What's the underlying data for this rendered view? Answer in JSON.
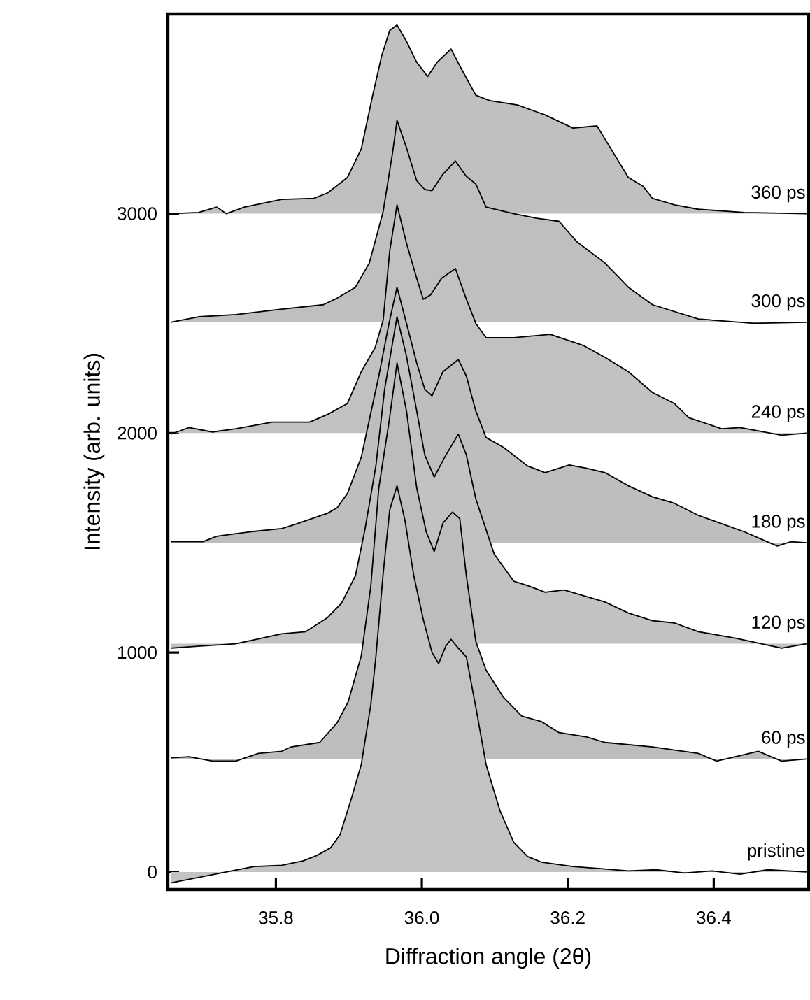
{
  "chart_data": {
    "type": "area",
    "xlabel": "Diffraction angle (2θ)",
    "ylabel": "Intensity (arb. units)",
    "xlim": [
      35.652,
      36.53
    ],
    "ylim": [
      -80,
      3910
    ],
    "xticks": [
      {
        "value": 35.8,
        "label": "35.8"
      },
      {
        "value": 36.0,
        "label": "36.0"
      },
      {
        "value": 36.2,
        "label": "36.2"
      },
      {
        "value": 36.4,
        "label": "36.4"
      }
    ],
    "yticks": [
      0,
      1000,
      2000,
      3000
    ],
    "series": [
      {
        "name": "360 ps",
        "color": "#c0c0c0",
        "x": [
          35.656,
          35.694,
          35.719,
          35.732,
          35.757,
          35.808,
          35.852,
          35.871,
          35.898,
          35.917,
          35.932,
          35.945,
          35.956,
          35.966,
          35.979,
          35.993,
          36.008,
          36.021,
          36.04,
          36.055,
          36.074,
          36.093,
          36.131,
          36.169,
          36.207,
          36.24,
          36.251,
          36.283,
          36.303,
          36.316,
          36.346,
          36.379,
          36.442,
          36.527
        ],
        "values": [
          3000,
          3005,
          3030,
          3000,
          3030,
          3065,
          3070,
          3095,
          3165,
          3295,
          3530,
          3720,
          3835,
          3860,
          3785,
          3690,
          3625,
          3690,
          3750,
          3655,
          3540,
          3515,
          3495,
          3450,
          3390,
          3400,
          3340,
          3165,
          3125,
          3070,
          3040,
          3020,
          3005,
          3000
        ]
      },
      {
        "name": "300 ps",
        "color": "#bfbfbf",
        "x": [
          35.656,
          35.694,
          35.745,
          35.808,
          35.865,
          35.884,
          35.909,
          35.928,
          35.947,
          35.96,
          35.966,
          35.979,
          35.993,
          36.004,
          36.014,
          36.029,
          36.046,
          36.061,
          36.074,
          36.088,
          36.126,
          36.156,
          36.188,
          36.213,
          36.251,
          36.283,
          36.316,
          36.379,
          36.455,
          36.527
        ],
        "values": [
          2505,
          2530,
          2540,
          2565,
          2585,
          2615,
          2665,
          2775,
          3010,
          3280,
          3425,
          3300,
          3150,
          3110,
          3105,
          3180,
          3240,
          3170,
          3135,
          3030,
          3000,
          2980,
          2965,
          2870,
          2775,
          2665,
          2585,
          2520,
          2500,
          2505
        ]
      },
      {
        "name": "240 ps",
        "color": "#c1c1c1",
        "x": [
          35.656,
          35.681,
          35.713,
          35.745,
          35.795,
          35.846,
          35.871,
          35.898,
          35.917,
          35.936,
          35.947,
          35.956,
          35.966,
          35.979,
          35.993,
          36.002,
          36.012,
          36.027,
          36.046,
          36.061,
          36.074,
          36.088,
          36.126,
          36.176,
          36.221,
          36.251,
          36.283,
          36.316,
          36.346,
          36.366,
          36.411,
          36.436,
          36.493,
          36.527
        ],
        "values": [
          1995,
          2025,
          2005,
          2020,
          2050,
          2050,
          2085,
          2135,
          2280,
          2390,
          2515,
          2830,
          3040,
          2865,
          2705,
          2610,
          2630,
          2705,
          2750,
          2610,
          2500,
          2435,
          2435,
          2450,
          2400,
          2345,
          2280,
          2185,
          2135,
          2070,
          2020,
          2025,
          1990,
          2000
        ]
      },
      {
        "name": "180 ps",
        "color": "#bebebe",
        "x": [
          35.656,
          35.7,
          35.719,
          35.764,
          35.808,
          35.827,
          35.871,
          35.884,
          35.898,
          35.917,
          35.928,
          35.941,
          35.955,
          35.966,
          35.979,
          35.993,
          36.004,
          36.014,
          36.029,
          36.05,
          36.061,
          36.074,
          36.088,
          36.112,
          36.145,
          36.169,
          36.202,
          36.226,
          36.251,
          36.283,
          36.316,
          36.346,
          36.379,
          36.442,
          36.487,
          36.506,
          36.527
        ],
        "values": [
          1505,
          1505,
          1530,
          1550,
          1565,
          1585,
          1635,
          1660,
          1725,
          1890,
          2060,
          2260,
          2500,
          2665,
          2500,
          2320,
          2200,
          2170,
          2280,
          2335,
          2260,
          2100,
          1980,
          1935,
          1850,
          1820,
          1855,
          1840,
          1820,
          1760,
          1710,
          1680,
          1625,
          1550,
          1485,
          1505,
          1500
        ]
      },
      {
        "name": "120 ps",
        "color": "#c2c2c2",
        "x": [
          35.656,
          35.7,
          35.745,
          35.808,
          35.841,
          35.871,
          35.89,
          35.909,
          35.922,
          35.937,
          35.949,
          35.966,
          35.979,
          35.993,
          36.004,
          36.017,
          36.033,
          36.05,
          36.061,
          36.074,
          36.088,
          36.099,
          36.126,
          36.145,
          36.169,
          36.195,
          36.251,
          36.283,
          36.316,
          36.346,
          36.379,
          36.43,
          36.493,
          36.527
        ],
        "values": [
          1020,
          1030,
          1040,
          1085,
          1095,
          1160,
          1225,
          1350,
          1560,
          1850,
          2200,
          2530,
          2350,
          2100,
          1900,
          1800,
          1900,
          1995,
          1900,
          1700,
          1560,
          1450,
          1325,
          1305,
          1275,
          1285,
          1230,
          1180,
          1145,
          1135,
          1095,
          1065,
          1020,
          1040
        ]
      },
      {
        "name": "60 ps",
        "color": "#bdbdbd",
        "x": [
          35.656,
          35.681,
          35.713,
          35.745,
          35.776,
          35.808,
          35.821,
          35.86,
          35.884,
          35.899,
          35.917,
          35.93,
          35.941,
          35.955,
          35.966,
          35.979,
          35.993,
          36.006,
          36.017,
          36.029,
          36.042,
          36.052,
          36.061,
          36.074,
          36.088,
          36.112,
          36.137,
          36.164,
          36.188,
          36.226,
          36.251,
          36.316,
          36.379,
          36.404,
          36.461,
          36.493,
          36.527
        ],
        "values": [
          520,
          525,
          505,
          505,
          540,
          550,
          570,
          590,
          680,
          775,
          985,
          1300,
          1750,
          2050,
          2320,
          2100,
          1750,
          1550,
          1460,
          1590,
          1640,
          1610,
          1350,
          1050,
          920,
          795,
          710,
          685,
          635,
          615,
          590,
          570,
          540,
          505,
          550,
          505,
          515
        ]
      },
      {
        "name": "pristine",
        "color": "#c3c3c3",
        "x": [
          35.656,
          35.694,
          35.732,
          35.77,
          35.808,
          35.837,
          35.856,
          35.875,
          35.888,
          35.903,
          35.917,
          35.93,
          35.937,
          35.947,
          35.956,
          35.966,
          35.977,
          35.989,
          36.002,
          36.014,
          36.023,
          36.033,
          36.04,
          36.05,
          36.061,
          36.074,
          36.088,
          36.107,
          36.126,
          36.145,
          36.164,
          36.207,
          36.245,
          36.283,
          36.321,
          36.36,
          36.398,
          36.436,
          36.474,
          36.527
        ],
        "values": [
          -50,
          -25,
          0,
          25,
          30,
          50,
          75,
          110,
          170,
          330,
          490,
          760,
          980,
          1360,
          1650,
          1760,
          1600,
          1350,
          1150,
          1000,
          950,
          1030,
          1060,
          1020,
          980,
          750,
          490,
          280,
          135,
          70,
          45,
          25,
          15,
          5,
          10,
          -5,
          5,
          -10,
          10,
          0
        ]
      }
    ]
  }
}
